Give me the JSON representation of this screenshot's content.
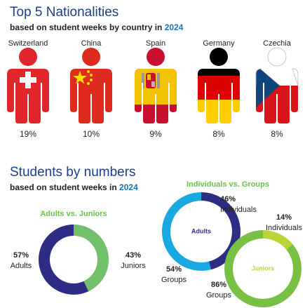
{
  "chart_data": [
    {
      "type": "pictograph",
      "title": "Top 5 Nationalities",
      "subtitle": "based on student weeks by country in",
      "subtitle_year": "2024",
      "categories": [
        "Switzerland",
        "China",
        "Spain",
        "Germany",
        "Czechia"
      ],
      "values": [
        19,
        10,
        9,
        8,
        8
      ],
      "value_labels": [
        "19%",
        "10%",
        "9%",
        "8%",
        "8%"
      ]
    },
    {
      "type": "donut",
      "section_title": "Students by numbers",
      "section_subtitle": "based on student weeks in",
      "section_year": "2024",
      "title": "Adults vs. Juniors",
      "categories": [
        "Adults",
        "Juniors"
      ],
      "values": [
        57,
        43
      ],
      "value_labels": [
        "57%",
        "43%"
      ],
      "colors": [
        "#2e2d85",
        "#72c06a"
      ]
    },
    {
      "type": "donut",
      "title": "Individuals vs. Groups",
      "center_label": "Adults",
      "categories": [
        "Individuals",
        "Groups"
      ],
      "values": [
        46,
        54
      ],
      "value_labels": [
        "46%",
        "54%"
      ],
      "colors": [
        "#2e2d85",
        "#1aa8e2"
      ]
    },
    {
      "type": "donut",
      "center_label": "Juniors",
      "categories": [
        "Individuals",
        "Groups"
      ],
      "values": [
        14,
        86
      ],
      "value_labels": [
        "14%",
        "86%"
      ],
      "colors": [
        "#bcd435",
        "#78c043"
      ]
    }
  ]
}
